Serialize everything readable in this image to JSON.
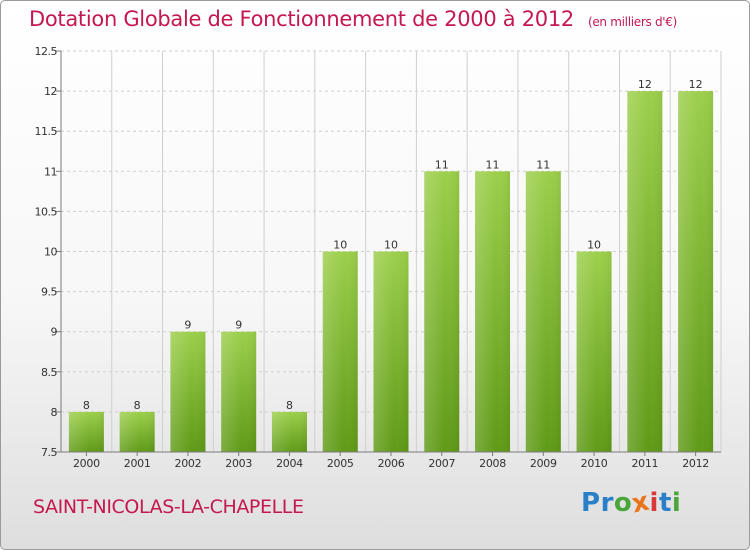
{
  "header": {
    "title": "Dotation Globale de Fonctionnement de 2000 à 2012",
    "unit": "(en milliers d'€)"
  },
  "footer": {
    "commune": "SAINT-NICOLAS-LA-CHAPELLE",
    "logo_letters": [
      "P",
      "r",
      "o",
      "x",
      "i",
      "t",
      "i"
    ],
    "logo_colors": [
      "#2a7fc9",
      "#2a7fc9",
      "#4aa63a",
      "#e8741c",
      "#d83a3a",
      "#2a7fc9",
      "#4aa63a"
    ]
  },
  "colors": {
    "bar_top": "#9ccf4b",
    "bar_bottom": "#5f9a17",
    "grid": "#cfcfcf",
    "axis": "#7a7a7a",
    "text": "#333333",
    "accent": "#c4184f"
  },
  "chart_data": {
    "type": "bar",
    "categories": [
      "2000",
      "2001",
      "2002",
      "2003",
      "2004",
      "2005",
      "2006",
      "2007",
      "2008",
      "2009",
      "2010",
      "2011",
      "2012"
    ],
    "values": [
      8,
      8,
      9,
      9,
      8,
      10,
      10,
      11,
      11,
      11,
      10,
      12,
      12
    ],
    "data_labels": [
      "8",
      "8",
      "9",
      "9",
      "8",
      "10",
      "10",
      "11",
      "11",
      "11",
      "10",
      "12",
      "12"
    ],
    "ylim": [
      7.5,
      12.5
    ],
    "y_ticks": [
      7.5,
      8,
      8.5,
      9,
      9.5,
      10,
      10.5,
      11,
      11.5,
      12,
      12.5
    ],
    "y_tick_labels": [
      "7.5",
      "8",
      "8.5",
      "9",
      "9.5",
      "10",
      "10.5",
      "11",
      "11.5",
      "12",
      "12.5"
    ],
    "grid": true
  }
}
